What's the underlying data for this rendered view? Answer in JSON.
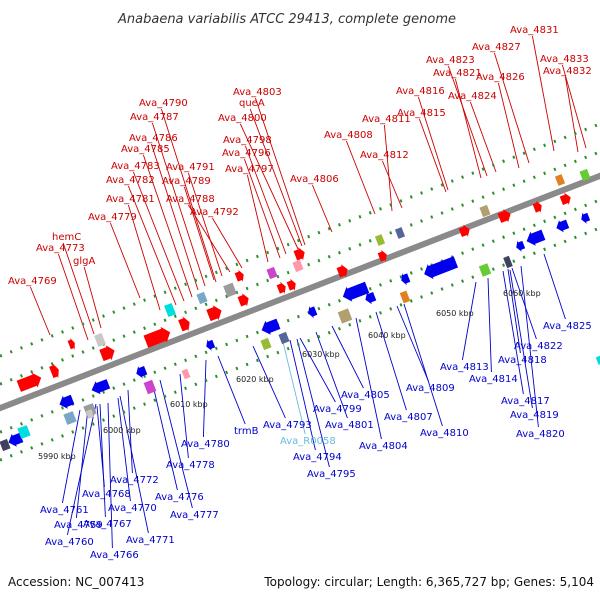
{
  "title": "Anabaena variabilis ATCC 29413, complete genome",
  "footer": {
    "accession": "Accession: NC_007413",
    "summary": "Topology: circular; Length: 6,365,727 bp; Genes: 5,104"
  },
  "colors": {
    "forward_label": "#cc0000",
    "reverse_label": "#0000cc",
    "rna_label": "#66bbdd",
    "forward_gene": "#ff0000",
    "reverse_gene": "#0000ee",
    "backbone": "#8a8a8a",
    "cds_dots": "#2f8f2f"
  },
  "ticks": [
    "5990 kbp",
    "6000 kbp",
    "6010 kbp",
    "6020 kbp",
    "6030 kbp",
    "6040 kbp",
    "6050 kbp",
    "6060 kbp"
  ],
  "forward_labels": [
    "Ava_4769",
    "Ava_4773",
    "hemC",
    "glgA",
    "Ava_4779",
    "Ava_4781",
    "Ava_4782",
    "Ava_4783",
    "Ava_4785",
    "Ava_4786",
    "Ava_4787",
    "Ava_4790",
    "Ava_4791",
    "Ava_4789",
    "Ava_4788",
    "Ava_4792",
    "Ava_4803",
    "queA",
    "Ava_4800",
    "Ava_4798",
    "Ava_4796",
    "Ava_4797",
    "Ava_4806",
    "Ava_4808",
    "Ava_4811",
    "Ava_4812",
    "Ava_4816",
    "Ava_4815",
    "Ava_4823",
    "Ava_4821",
    "Ava_4824",
    "Ava_4826",
    "Ava_4827",
    "Ava_4831",
    "Ava_4833",
    "Ava_4832"
  ],
  "reverse_labels": [
    "Ava_4761",
    "Ava_4759",
    "Ava_4760",
    "Ava_4766",
    "Ava_4767",
    "Ava_4768",
    "Ava_4770",
    "Ava_4771",
    "Ava_4772",
    "Ava_4776",
    "Ava_4777",
    "Ava_4778",
    "Ava_4780",
    "trmB",
    "Ava_4793",
    "Ava_R0058",
    "Ava_4794",
    "Ava_4795",
    "Ava_4799",
    "Ava_4801",
    "Ava_4805",
    "Ava_4804",
    "Ava_4807",
    "Ava_4809",
    "Ava_4810",
    "Ava_4813",
    "Ava_4814",
    "Ava_4817",
    "Ava_4819",
    "Ava_4820",
    "Ava_4818",
    "Ava_4822",
    "Ava_4825"
  ]
}
